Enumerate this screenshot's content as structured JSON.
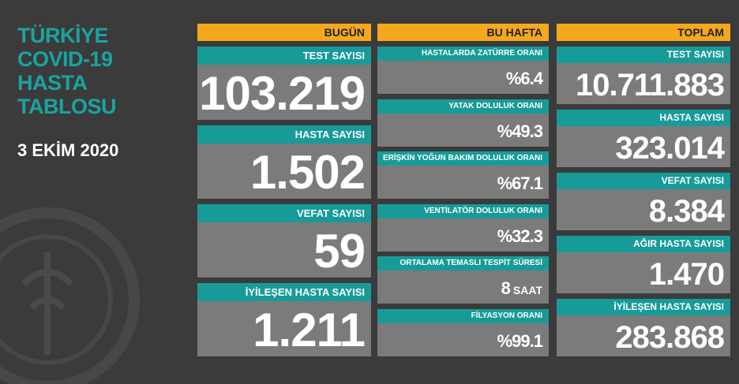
{
  "title_lines": [
    "TÜRKİYE",
    "COVID-19",
    "HASTA",
    "TABLOSU"
  ],
  "date": "3 EKİM 2020",
  "columns": [
    {
      "header": "BUGÜN",
      "items": [
        {
          "label": "TEST SAYISI",
          "value": "103.219"
        },
        {
          "label": "HASTA SAYISI",
          "value": "1.502"
        },
        {
          "label": "VEFAT SAYISI",
          "value": "59"
        },
        {
          "label": "İYİLEŞEN HASTA SAYISI",
          "value": "1.211"
        }
      ]
    },
    {
      "header": "BU HAFTA",
      "items": [
        {
          "label": "HASTALARDA ZATÜRRE ORANI",
          "value": "%6.4"
        },
        {
          "label": "YATAK DOLULUK ORANI",
          "value": "%49.3"
        },
        {
          "label": "ERİŞKİN YOĞUN BAKIM DOLULUK ORANI",
          "value": "%67.1"
        },
        {
          "label": "VENTİLATÖR DOLULUK ORANI",
          "value": "%32.3"
        },
        {
          "label": "ORTALAMA TEMASLI TESPİT SÜRESİ",
          "value": "8",
          "unit": "SAAT"
        },
        {
          "label": "FİLYASYON ORANI",
          "value": "%99.1"
        }
      ]
    },
    {
      "header": "TOPLAM",
      "items": [
        {
          "label": "TEST SAYISI",
          "value": "10.711.883"
        },
        {
          "label": "HASTA SAYISI",
          "value": "323.014"
        },
        {
          "label": "VEFAT SAYISI",
          "value": "8.384"
        },
        {
          "label": "AĞIR HASTA SAYISI",
          "value": "1.470"
        },
        {
          "label": "İYİLEŞEN HASTA SAYISI",
          "value": "283.868"
        }
      ]
    }
  ]
}
